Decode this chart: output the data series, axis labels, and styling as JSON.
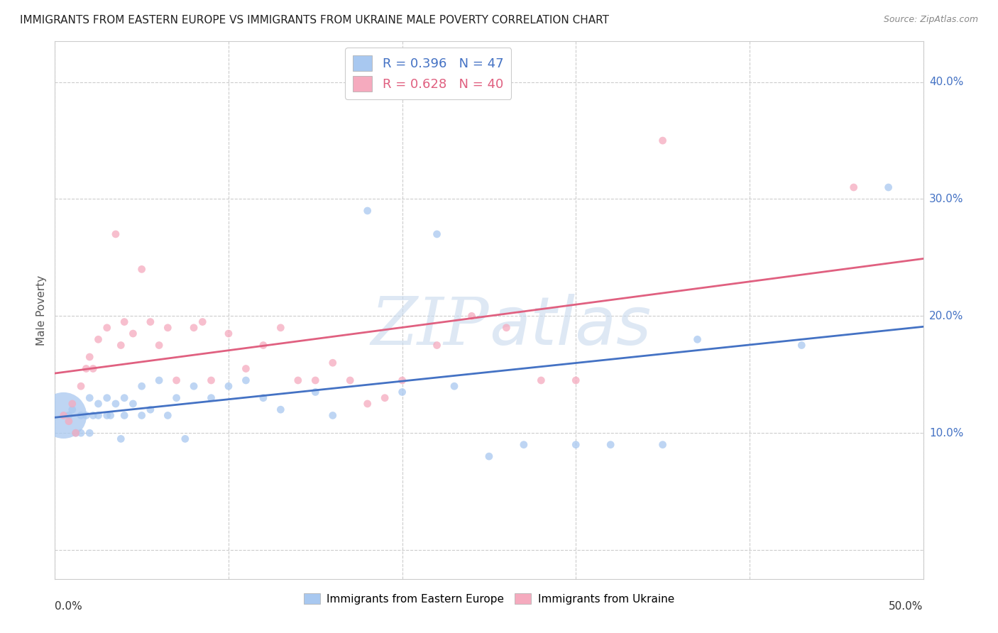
{
  "title": "IMMIGRANTS FROM EASTERN EUROPE VS IMMIGRANTS FROM UKRAINE MALE POVERTY CORRELATION CHART",
  "source": "Source: ZipAtlas.com",
  "ylabel": "Male Poverty",
  "y_ticks": [
    0.0,
    0.1,
    0.2,
    0.3,
    0.4
  ],
  "xlim": [
    0.0,
    0.5
  ],
  "ylim": [
    -0.025,
    0.435
  ],
  "series1_label": "Immigrants from Eastern Europe",
  "series2_label": "Immigrants from Ukraine",
  "R1": 0.396,
  "N1": 47,
  "R2": 0.628,
  "N2": 40,
  "color1": "#A8C8F0",
  "color2": "#F5AABE",
  "line_color1": "#4472C4",
  "line_color2": "#E06080",
  "background_color": "#FFFFFF",
  "grid_color": "#CCCCCC",
  "watermark_color": "#DDEEFF",
  "series1_x": [
    0.005,
    0.008,
    0.01,
    0.012,
    0.015,
    0.015,
    0.018,
    0.02,
    0.02,
    0.022,
    0.025,
    0.025,
    0.03,
    0.03,
    0.032,
    0.035,
    0.038,
    0.04,
    0.04,
    0.045,
    0.05,
    0.05,
    0.055,
    0.06,
    0.065,
    0.07,
    0.075,
    0.08,
    0.09,
    0.1,
    0.11,
    0.12,
    0.13,
    0.15,
    0.16,
    0.18,
    0.2,
    0.22,
    0.23,
    0.25,
    0.27,
    0.3,
    0.32,
    0.35,
    0.37,
    0.43,
    0.48
  ],
  "series1_y": [
    0.115,
    0.115,
    0.12,
    0.1,
    0.115,
    0.1,
    0.115,
    0.13,
    0.1,
    0.115,
    0.125,
    0.115,
    0.13,
    0.115,
    0.115,
    0.125,
    0.095,
    0.13,
    0.115,
    0.125,
    0.14,
    0.115,
    0.12,
    0.145,
    0.115,
    0.13,
    0.095,
    0.14,
    0.13,
    0.14,
    0.145,
    0.13,
    0.12,
    0.135,
    0.115,
    0.29,
    0.135,
    0.27,
    0.14,
    0.08,
    0.09,
    0.09,
    0.09,
    0.09,
    0.18,
    0.175,
    0.31
  ],
  "series1_size": [
    2200,
    60,
    60,
    60,
    60,
    60,
    60,
    60,
    60,
    60,
    60,
    60,
    60,
    60,
    60,
    60,
    60,
    60,
    60,
    60,
    60,
    60,
    60,
    60,
    60,
    60,
    60,
    60,
    60,
    60,
    60,
    60,
    60,
    60,
    60,
    60,
    60,
    60,
    60,
    60,
    60,
    60,
    60,
    60,
    60,
    60,
    60
  ],
  "series2_x": [
    0.005,
    0.008,
    0.01,
    0.012,
    0.015,
    0.018,
    0.02,
    0.022,
    0.025,
    0.03,
    0.035,
    0.038,
    0.04,
    0.045,
    0.05,
    0.055,
    0.06,
    0.065,
    0.07,
    0.08,
    0.085,
    0.09,
    0.1,
    0.11,
    0.12,
    0.13,
    0.14,
    0.15,
    0.16,
    0.17,
    0.18,
    0.19,
    0.2,
    0.22,
    0.24,
    0.26,
    0.28,
    0.3,
    0.35,
    0.46
  ],
  "series2_y": [
    0.115,
    0.11,
    0.125,
    0.1,
    0.14,
    0.155,
    0.165,
    0.155,
    0.18,
    0.19,
    0.27,
    0.175,
    0.195,
    0.185,
    0.24,
    0.195,
    0.175,
    0.19,
    0.145,
    0.19,
    0.195,
    0.145,
    0.185,
    0.155,
    0.175,
    0.19,
    0.145,
    0.145,
    0.16,
    0.145,
    0.125,
    0.13,
    0.145,
    0.175,
    0.2,
    0.19,
    0.145,
    0.145,
    0.35,
    0.31
  ],
  "series2_size": [
    60,
    60,
    60,
    60,
    60,
    60,
    60,
    60,
    60,
    60,
    60,
    60,
    60,
    60,
    60,
    60,
    60,
    60,
    60,
    60,
    60,
    60,
    60,
    60,
    60,
    60,
    60,
    60,
    60,
    60,
    60,
    60,
    60,
    60,
    60,
    60,
    60,
    60,
    60,
    60
  ]
}
